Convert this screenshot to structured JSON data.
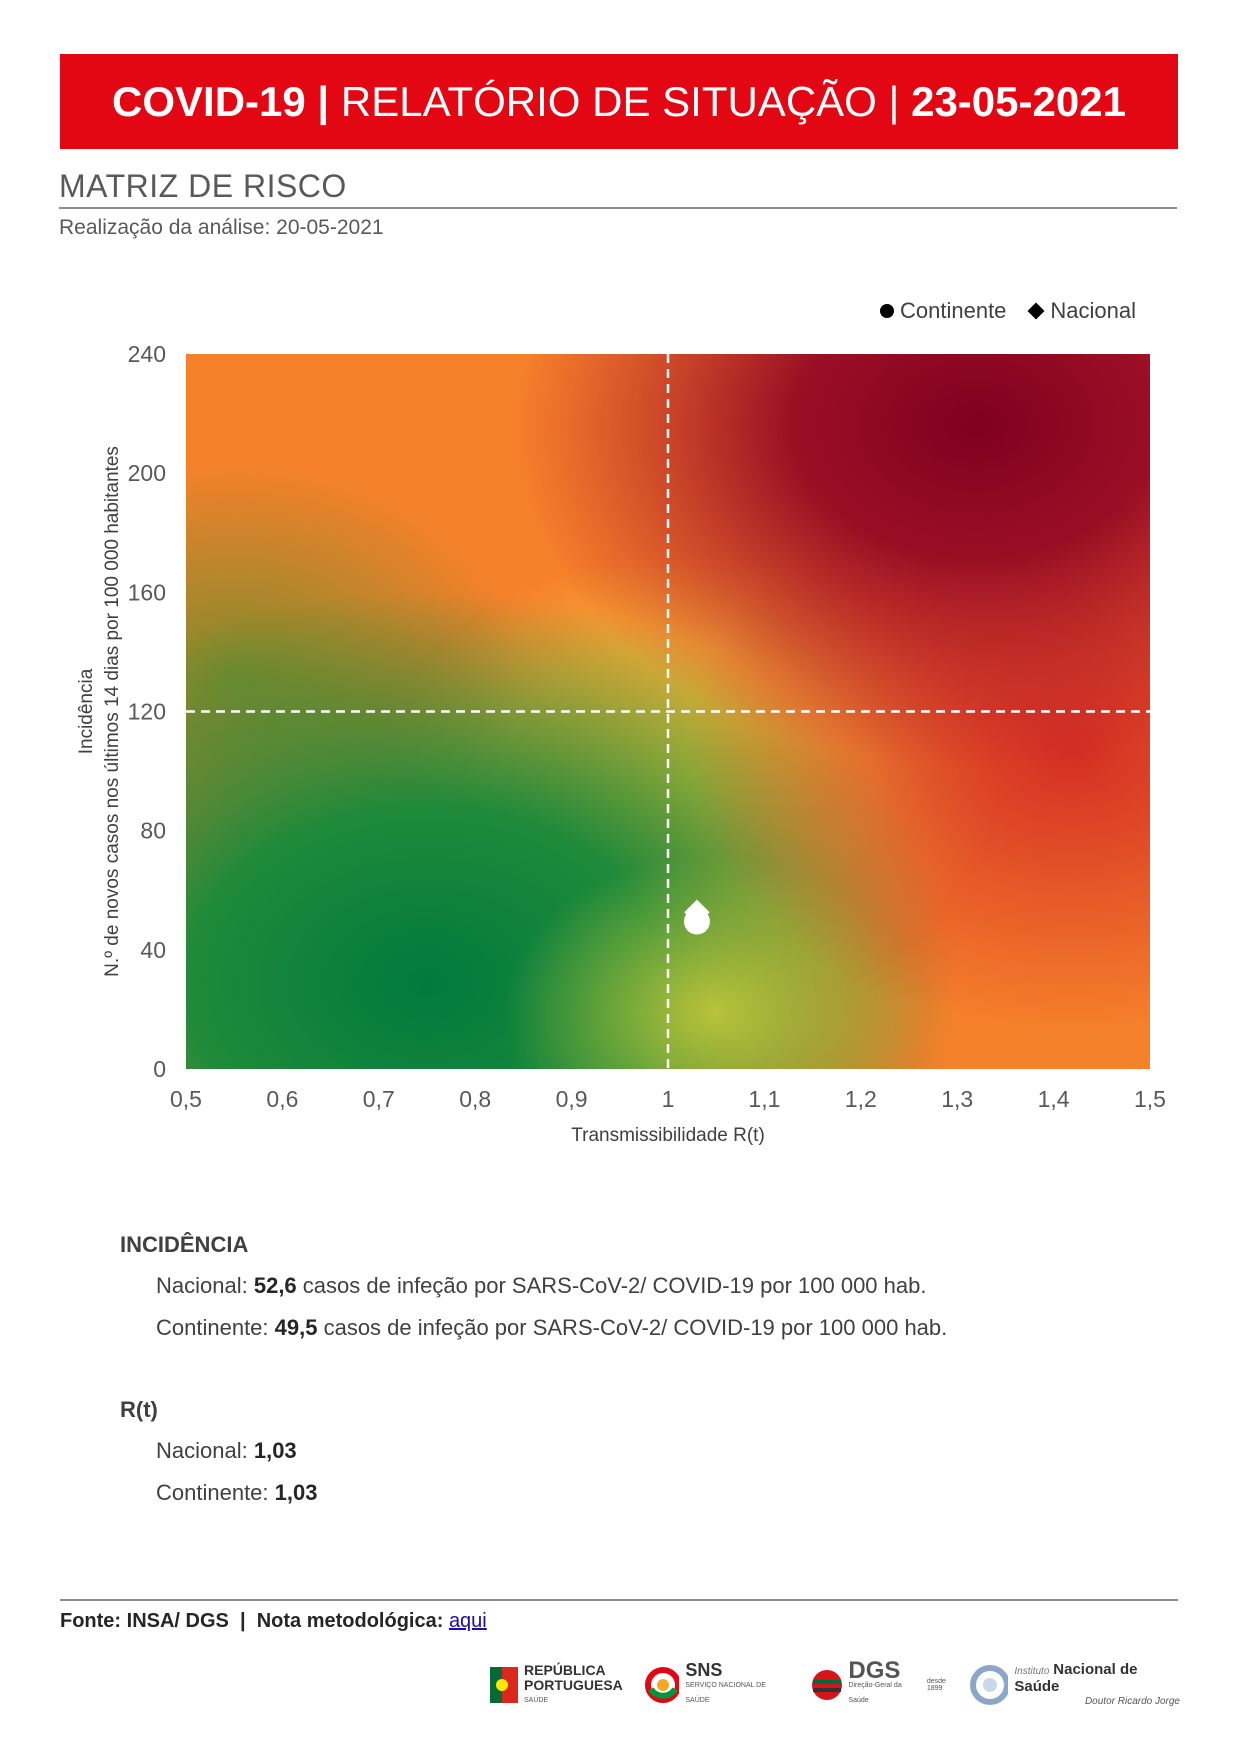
{
  "header": {
    "title_part1": "COVID-19 |",
    "title_part2": "RELATÓRIO DE SITUAÇÃO |",
    "title_part3": "23-05-2021"
  },
  "section": {
    "title": "MATRIZ DE RISCO",
    "analysis_date": "Realização da análise: 20-05-2021"
  },
  "chart_data": {
    "type": "scatter",
    "title": "",
    "xlabel": "Transmissibilidade R(t)",
    "ylabel_line1": "Incidência",
    "ylabel_line2": "N.º de novos casos nos últimos 14 dias por 100 000 habitantes",
    "xlim": [
      0.5,
      1.5
    ],
    "ylim": [
      0,
      240
    ],
    "x_ticks": [
      "0,5",
      "0,6",
      "0,7",
      "0,8",
      "0,9",
      "1",
      "1,1",
      "1,2",
      "1,3",
      "1,4",
      "1,5"
    ],
    "y_ticks": [
      "0",
      "40",
      "80",
      "120",
      "160",
      "200",
      "240"
    ],
    "x_threshold": 1,
    "y_threshold": 120,
    "background": "risk gradient green-yellow-orange-red",
    "legend_position": "top-right",
    "series": [
      {
        "name": "Continente",
        "marker": "circle",
        "x": [
          1.03
        ],
        "y": [
          49.5
        ]
      },
      {
        "name": "Nacional",
        "marker": "diamond",
        "x": [
          1.03
        ],
        "y": [
          52.6
        ]
      }
    ]
  },
  "incidence": {
    "heading": "INCIDÊNCIA",
    "nacional_label": "Nacional: ",
    "nacional_value": "52,6",
    "nacional_suffix": " casos de infeção por SARS-CoV-2/ COVID-19 por 100 000 hab.",
    "continente_label": "Continente: ",
    "continente_value": "49,5",
    "continente_suffix": " casos de infeção por SARS-CoV-2/ COVID-19 por 100 000 hab."
  },
  "rt": {
    "heading": "R(t)",
    "nacional_label": "Nacional: ",
    "nacional_value": "1,03",
    "continente_label": "Continente: ",
    "continente_value": "1,03"
  },
  "footer": {
    "source": "Fonte: INSA/ DGS  |  Nota metodológica: ",
    "link": "aqui"
  },
  "logos": {
    "republica_line1": "REPÚBLICA",
    "republica_line2": "PORTUGUESA",
    "republica_sub": "SAÚDE",
    "sns": "SNS",
    "sns_sub": "SERVIÇO NACIONAL DE SAÚDE",
    "dgs": "DGS",
    "dgs_since": "desde 1899",
    "dgs_sub": "Direção-Geral da Saúde",
    "insa_prefix": "Instituto",
    "insa_name": "Nacional de Saúde",
    "insa_sub": "Doutor Ricardo Jorge"
  },
  "colors": {
    "banner": "#e30613",
    "green": "#007a3d",
    "yellow": "#e8c33a",
    "orange": "#f7862a",
    "red": "#d42d24",
    "darkred": "#800020"
  }
}
